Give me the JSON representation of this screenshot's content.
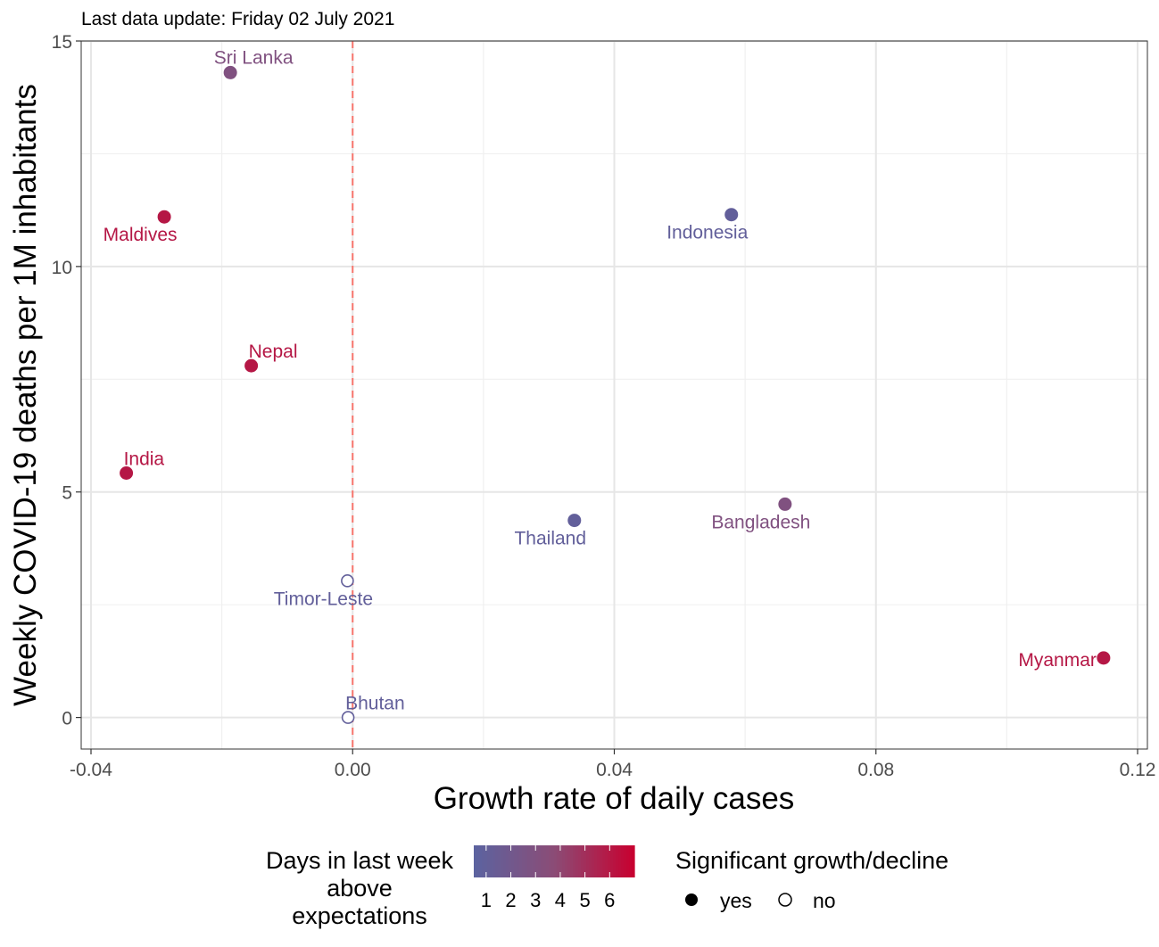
{
  "chart_data": {
    "type": "scatter",
    "subtitle": "Last data update: Friday 02 July 2021",
    "xlabel": "Growth rate of daily cases",
    "ylabel": "Weekly COVID-19 deaths per 1M inhabitants",
    "xlim": [
      -0.0415,
      0.1215
    ],
    "ylim": [
      -0.7,
      15
    ],
    "x_ticks": [
      -0.04,
      0.0,
      0.04,
      0.08,
      0.12
    ],
    "x_tick_labels": [
      "-0.04",
      "0.00",
      "0.04",
      "0.08",
      "0.12"
    ],
    "y_ticks": [
      0,
      5,
      10,
      15
    ],
    "y_tick_labels": [
      "0",
      "5",
      "10",
      "15"
    ],
    "grid": true,
    "reference_line": {
      "x": 0.0,
      "style": "dashed",
      "color": "#f8766d"
    },
    "points": [
      {
        "label": "Sri Lanka",
        "x": -0.0187,
        "y": 14.3,
        "days": 3,
        "significant": true,
        "label_pos": "above"
      },
      {
        "label": "Maldives",
        "x": -0.0288,
        "y": 11.1,
        "days": 6,
        "significant": true,
        "label_pos": "below-left"
      },
      {
        "label": "Indonesia",
        "x": 0.0579,
        "y": 11.15,
        "days": 1,
        "significant": true,
        "label_pos": "below-left"
      },
      {
        "label": "Nepal",
        "x": -0.0155,
        "y": 7.8,
        "days": 6,
        "significant": true,
        "label_pos": "above-right"
      },
      {
        "label": "India",
        "x": -0.0346,
        "y": 5.42,
        "days": 6,
        "significant": true,
        "label_pos": "above-right"
      },
      {
        "label": "Bangladesh",
        "x": 0.0661,
        "y": 4.73,
        "days": 3,
        "significant": true,
        "label_pos": "below-left"
      },
      {
        "label": "Thailand",
        "x": 0.0339,
        "y": 4.37,
        "days": 1,
        "significant": true,
        "label_pos": "below-left"
      },
      {
        "label": "Timor-Leste",
        "x": -0.0008,
        "y": 3.03,
        "days": 1,
        "significant": false,
        "label_pos": "below-left"
      },
      {
        "label": "Myanmar",
        "x": 0.1148,
        "y": 1.32,
        "days": 6,
        "significant": true,
        "label_pos": "left"
      },
      {
        "label": "Bhutan",
        "x": -0.0007,
        "y": 0.0,
        "days": 1,
        "significant": false,
        "label_pos": "above-right"
      }
    ],
    "color_scale": {
      "min_days": 0.5,
      "max_days": 7,
      "low": "#5b63a0",
      "mid": "#8b4c76",
      "high": "#c8002f"
    },
    "legend": {
      "placement": "bottom",
      "color_title": [
        "Days in last week",
        "above",
        "expectations"
      ],
      "color_ticks": [
        "1",
        "2",
        "3",
        "4",
        "5",
        "6"
      ],
      "shape_title": "Significant growth/decline",
      "shape_items": [
        {
          "label": "yes",
          "filled": true
        },
        {
          "label": "no",
          "filled": false
        }
      ]
    }
  }
}
